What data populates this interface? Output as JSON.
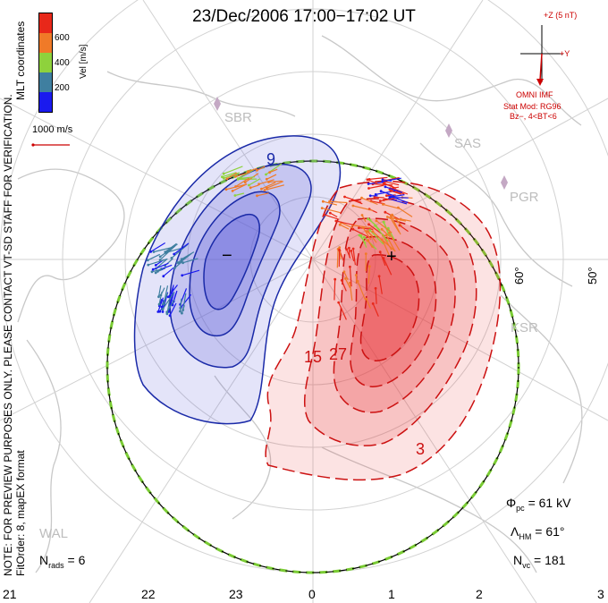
{
  "title": "23/Dec/2006 17:00−17:02 UT",
  "colorbar": {
    "label": "Vel [m/s]",
    "ticks": [
      "600",
      "400",
      "200"
    ],
    "colors": [
      "#e8281a",
      "#f07a28",
      "#8ed23c",
      "#3f7fa0",
      "#1a1aee"
    ]
  },
  "coordinates_label": "MLT coordinates",
  "note": "NOTE: FOR PREVIEW PURPOSES ONLY. PLEASE CONTACT VT-SD STAFF FOR VERIFICATION.",
  "fit_order": "FitOrder: 8, mapEX format",
  "velocity_scale": "1000 m/s",
  "imf": {
    "bz_label": "+Z (5 nT)",
    "by_label": "+Y",
    "source": "OMNI IMF",
    "model": "Stat Mod: RG96",
    "condition": "Bz−, 4<BT<6"
  },
  "stats": {
    "phi_pc": "= 61 kV",
    "lambda_hm": "= 61°",
    "n_vc": "= 181",
    "n_rads": "= 6"
  },
  "radars": [
    "SBR",
    "SAS",
    "PGR",
    "KSR",
    "WAL"
  ],
  "mlt_labels": [
    "21",
    "22",
    "23",
    "0",
    "1",
    "2",
    "3"
  ],
  "lat_labels": [
    "60°",
    "50°"
  ],
  "contours": {
    "negative_labels": [
      "9",
      "−"
    ],
    "positive_labels": [
      "+",
      "15",
      "27",
      "3"
    ]
  },
  "map_colors": {
    "negative_fill": "#5a5ad8",
    "negative_line": "#1a2aa8",
    "positive_fill": "#e8363a",
    "positive_line": "#cc1111",
    "coastline": "#c8c8c8",
    "boundary": "#7acc33"
  }
}
